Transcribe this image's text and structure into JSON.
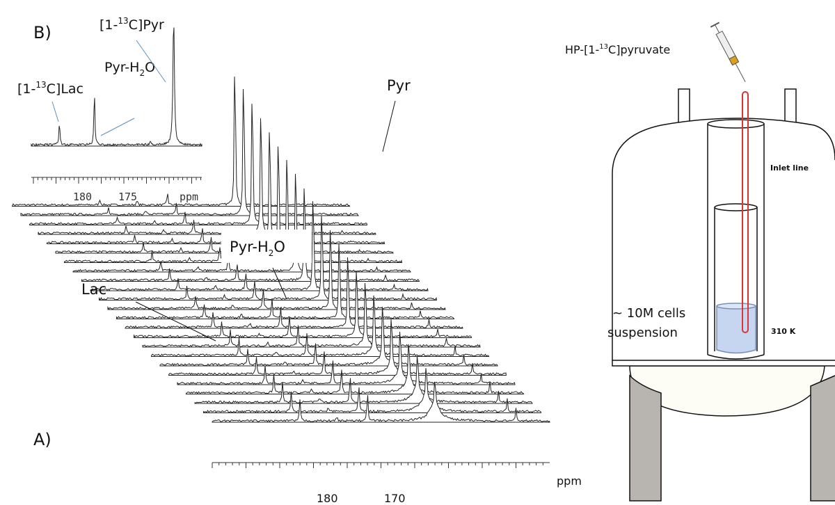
{
  "panel_b": {
    "label": "B)",
    "pyr_label": {
      "pre": "[1-",
      "sup": "13",
      "post": "C]Pyr"
    },
    "lac_label": {
      "pre": "[1-",
      "sup": "13",
      "post": "C]Lac"
    },
    "hydrate_label": {
      "pre": "Pyr-H",
      "sub": "2",
      "post": "O"
    },
    "axis": {
      "ticks": [
        "180",
        "175"
      ],
      "unit": "ppm"
    }
  },
  "panel_a": {
    "label": "A)",
    "pyr": "Pyr",
    "lac": "Lac",
    "hydrate": {
      "pre": "Pyr-H",
      "sub": "2",
      "post": "O"
    },
    "axis": {
      "ticks": [
        "180",
        "170"
      ],
      "unit": "ppm"
    }
  },
  "setup": {
    "tracer": {
      "pre": "HP-[1-",
      "sup": "13",
      "post": "C]pyruvate"
    },
    "inlet": "Inlet line",
    "cells": [
      "~ 10M cells",
      "suspension"
    ],
    "temperature": "310 K"
  }
}
